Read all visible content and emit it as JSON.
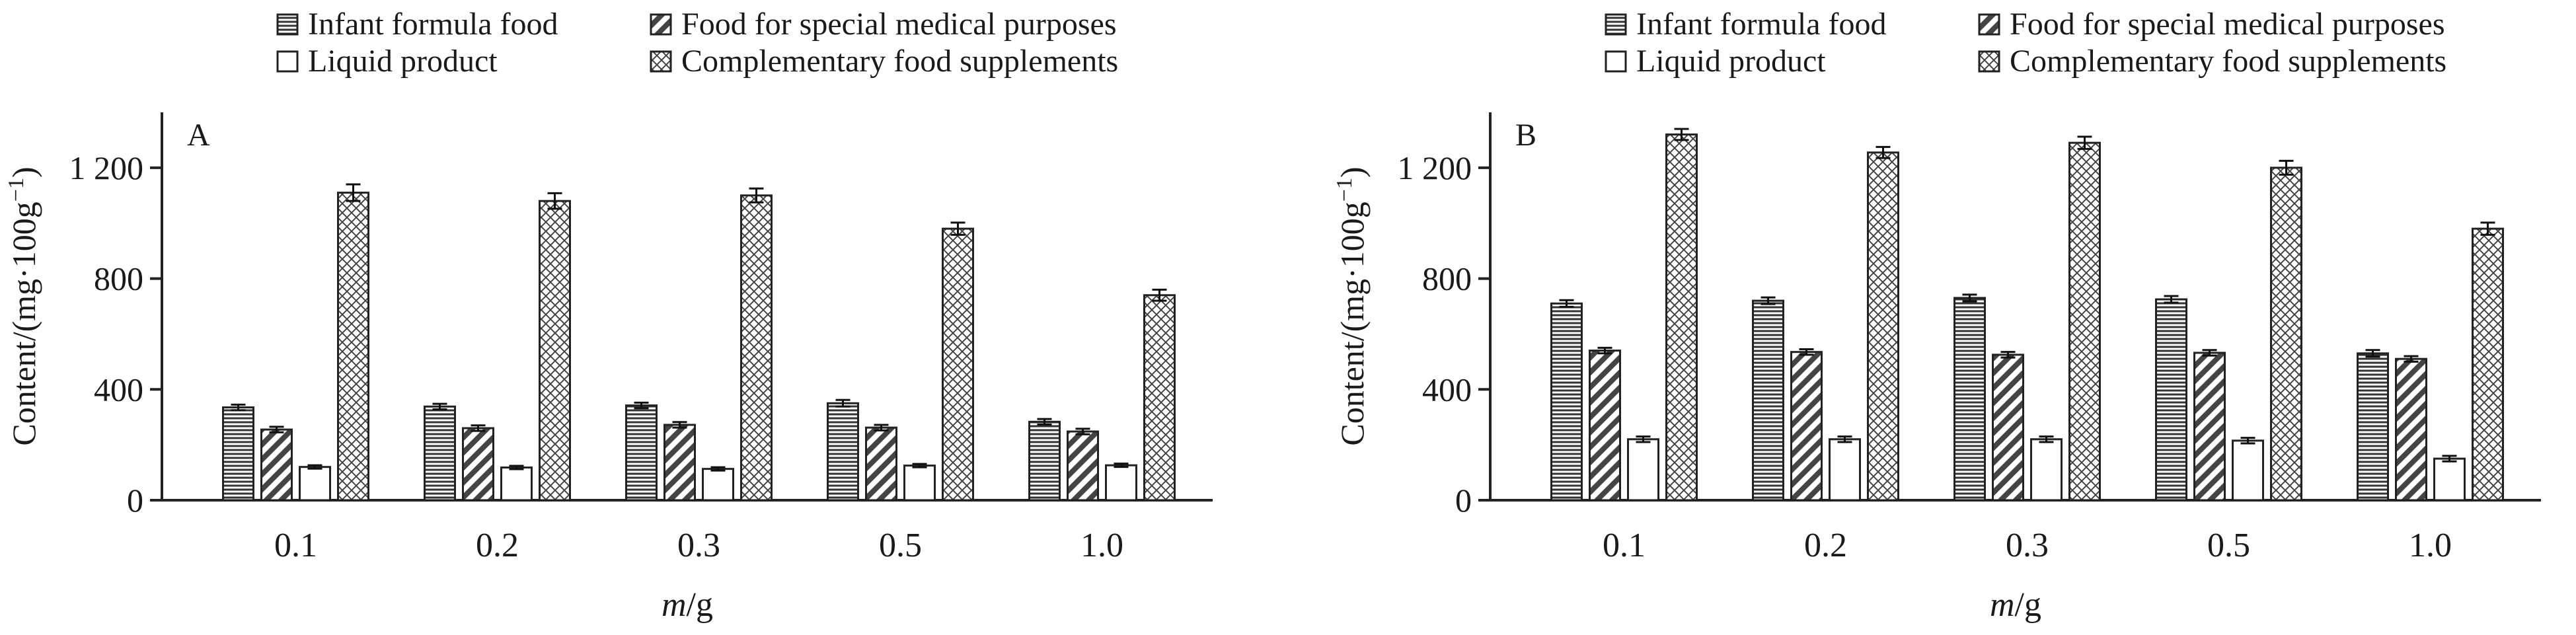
{
  "chart_data": [
    {
      "type": "bar",
      "panel_label": "A",
      "categories": [
        "0.1",
        "0.2",
        "0.3",
        "0.5",
        "1.0"
      ],
      "series": [
        {
          "name": "Infant formula food",
          "values": [
            335,
            338,
            342,
            350,
            283
          ],
          "errors": [
            10,
            10,
            10,
            12,
            10
          ]
        },
        {
          "name": "Food for special medical purposes",
          "values": [
            255,
            260,
            272,
            262,
            248
          ],
          "errors": [
            10,
            10,
            10,
            10,
            10
          ]
        },
        {
          "name": "Liquid product",
          "values": [
            120,
            118,
            113,
            125,
            126
          ],
          "errors": [
            6,
            6,
            6,
            6,
            6
          ]
        },
        {
          "name": "Complementary food supplements",
          "values": [
            1110,
            1080,
            1100,
            980,
            740
          ],
          "errors": [
            30,
            28,
            25,
            22,
            20
          ]
        }
      ],
      "xlabel_italic": "m",
      "xlabel_rest": "/g",
      "ylabel": "Content/(mg·100g",
      "ylabel_sup": "−1",
      "ylabel_close": ")",
      "ylim": [
        0,
        1400
      ],
      "yticks": [
        0,
        400,
        800,
        1200
      ],
      "ytick_labels": [
        "0",
        "400",
        "800",
        "1 200"
      ],
      "legend": "top"
    },
    {
      "type": "bar",
      "panel_label": "B",
      "categories": [
        "0.1",
        "0.2",
        "0.3",
        "0.5",
        "1.0"
      ],
      "series": [
        {
          "name": "Infant formula food",
          "values": [
            710,
            720,
            730,
            725,
            530
          ],
          "errors": [
            12,
            12,
            12,
            12,
            12
          ]
        },
        {
          "name": "Food for special medical purposes",
          "values": [
            540,
            535,
            525,
            532,
            510
          ],
          "errors": [
            10,
            10,
            10,
            10,
            10
          ]
        },
        {
          "name": "Liquid product",
          "values": [
            220,
            220,
            220,
            215,
            150
          ],
          "errors": [
            10,
            10,
            10,
            10,
            10
          ]
        },
        {
          "name": "Complementary food supplements",
          "values": [
            1320,
            1255,
            1290,
            1200,
            980
          ],
          "errors": [
            20,
            20,
            22,
            25,
            22
          ]
        }
      ],
      "xlabel_italic": "m",
      "xlabel_rest": "/g",
      "ylabel": "Content/(mg·100g",
      "ylabel_sup": "−1",
      "ylabel_close": ")",
      "ylim": [
        0,
        1400
      ],
      "yticks": [
        0,
        400,
        800,
        1200
      ],
      "ytick_labels": [
        "0",
        "400",
        "800",
        "1 200"
      ],
      "legend": "top"
    }
  ]
}
